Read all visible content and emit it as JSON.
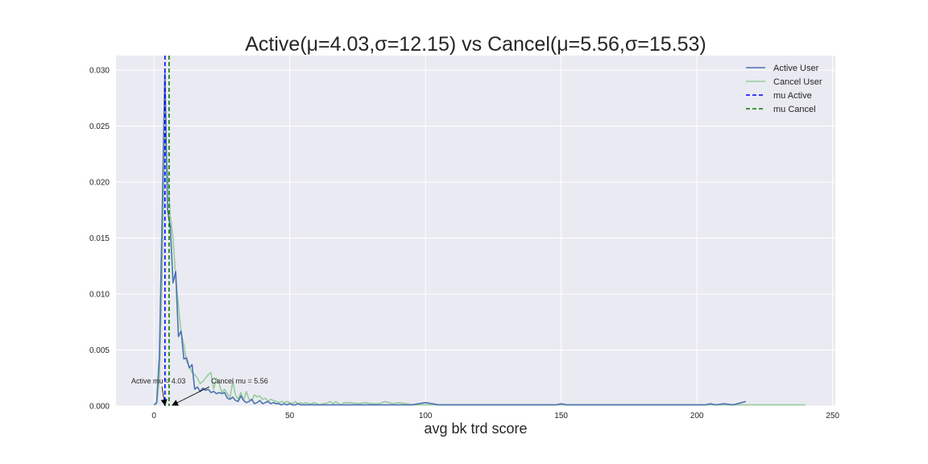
{
  "chart_data": {
    "type": "line",
    "title": "Active(μ=4.03,σ=12.15) vs Cancel(μ=5.56,σ=15.53)",
    "xlabel": "avg bk trd score",
    "ylabel": "",
    "xlim": [
      -14,
      251
    ],
    "ylim": [
      0,
      0.0313
    ],
    "xticks": [
      0,
      50,
      100,
      150,
      200,
      250
    ],
    "xtick_labels": [
      "0",
      "50",
      "100",
      "150",
      "200",
      "250"
    ],
    "yticks": [
      0,
      0.005,
      0.01,
      0.015,
      0.02,
      0.025,
      0.03
    ],
    "ytick_labels": [
      "0.000",
      "0.005",
      "0.010",
      "0.015",
      "0.020",
      "0.025",
      "0.030"
    ],
    "grid": true,
    "legend_position": "top-right",
    "series": [
      {
        "name": "Active User",
        "color": "#4c72b0",
        "x": [
          0,
          1,
          2,
          3,
          4,
          5,
          6,
          7,
          8,
          9,
          10,
          11,
          12,
          13,
          14,
          15,
          16,
          17,
          18,
          19,
          20,
          21,
          22,
          23,
          24,
          25,
          26,
          27,
          28,
          29,
          30,
          31,
          32,
          33,
          34,
          35,
          36,
          37,
          38,
          39,
          40,
          41,
          42,
          43,
          44,
          45,
          46,
          47,
          48,
          49,
          50,
          51,
          52,
          53,
          54,
          55,
          56,
          57,
          58,
          59,
          60,
          61,
          62,
          63,
          64,
          65,
          66,
          67,
          68,
          69,
          70,
          71,
          72,
          73,
          74,
          75,
          76,
          77,
          78,
          79,
          80,
          81,
          82,
          83,
          84,
          85,
          86,
          87,
          88,
          89,
          90,
          95,
          100,
          105,
          110,
          115,
          120,
          125,
          130,
          135,
          140,
          145,
          148,
          150,
          152,
          155,
          160,
          165,
          170,
          175,
          180,
          185,
          190,
          195,
          200,
          203,
          205,
          207,
          210,
          213,
          215,
          218
        ],
        "y": [
          0.0001,
          0.0003,
          0.0045,
          0.017,
          0.03,
          0.0175,
          0.016,
          0.011,
          0.012,
          0.0062,
          0.0067,
          0.0042,
          0.0043,
          0.0034,
          0.0037,
          0.0015,
          0.0017,
          0.0013,
          0.0016,
          0.0014,
          0.0015,
          0.0012,
          0.0013,
          0.0011,
          0.0012,
          0.0011,
          0.0012,
          0.0007,
          0.0006,
          0.0008,
          0.0005,
          0.0004,
          0.0009,
          0.0005,
          0.0003,
          0.0004,
          0.0006,
          0.0002,
          0.0003,
          0.0005,
          0.0002,
          0.0003,
          0.0004,
          0.0002,
          0.0003,
          0.0002,
          0.0002,
          0.0001,
          0.0002,
          0.0001,
          0.0002,
          0.0001,
          0.0001,
          0.0002,
          0.0001,
          0.0001,
          0.0001,
          0.0001,
          0.0001,
          0.0001,
          0.0001,
          0.0001,
          0.0001,
          0.0001,
          0.0001,
          0.0001,
          0.0001,
          0.0001,
          0.0001,
          0.0001,
          0.0001,
          0.0001,
          0.0001,
          0.0001,
          0.0001,
          0.0001,
          0.0001,
          0.0001,
          0.0001,
          0.0001,
          0.0001,
          0.0001,
          0.0001,
          0.0001,
          0.0001,
          0.0001,
          0.0001,
          0.0001,
          0.0001,
          0.0001,
          0.0001,
          0.0001,
          0.0003,
          0.0001,
          0.0001,
          0.0001,
          0.0001,
          0.0001,
          0.0001,
          0.0001,
          0.0001,
          0.0001,
          0.0001,
          0.0002,
          0.0001,
          0.0001,
          0.0001,
          0.0001,
          0.0001,
          0.0001,
          0.0001,
          0.0001,
          0.0001,
          0.0001,
          0.0001,
          0.0001,
          0.0002,
          0.0001,
          0.0002,
          0.0001,
          0.0002,
          0.0004
        ]
      },
      {
        "name": "Cancel User",
        "color": "#97cd9e",
        "x": [
          0,
          1,
          2,
          3,
          4,
          5,
          6,
          7,
          8,
          9,
          10,
          11,
          12,
          13,
          14,
          15,
          16,
          17,
          18,
          19,
          20,
          21,
          22,
          23,
          24,
          25,
          26,
          27,
          28,
          29,
          30,
          31,
          32,
          33,
          34,
          35,
          36,
          37,
          38,
          39,
          40,
          41,
          42,
          43,
          44,
          45,
          46,
          47,
          48,
          49,
          50,
          51,
          52,
          53,
          54,
          55,
          56,
          57,
          58,
          59,
          60,
          61,
          62,
          63,
          64,
          65,
          66,
          67,
          68,
          69,
          70,
          72,
          75,
          78,
          80,
          83,
          85,
          88,
          90,
          93,
          95,
          100,
          105,
          110,
          115,
          120,
          130,
          140,
          150,
          160,
          170,
          180,
          190,
          200,
          210,
          220,
          225,
          230,
          235,
          240
        ],
        "y": [
          0.0001,
          0.0002,
          0.0025,
          0.012,
          0.024,
          0.021,
          0.017,
          0.015,
          0.0115,
          0.009,
          0.0065,
          0.0055,
          0.004,
          0.0035,
          0.003,
          0.0028,
          0.0025,
          0.002,
          0.0022,
          0.0025,
          0.0028,
          0.003,
          0.0015,
          0.0025,
          0.002,
          0.0012,
          0.0015,
          0.0011,
          0.0007,
          0.0022,
          0.001,
          0.0006,
          0.0012,
          0.0005,
          0.0013,
          0.0006,
          0.0005,
          0.001,
          0.0008,
          0.0009,
          0.0006,
          0.0007,
          0.0004,
          0.0006,
          0.0005,
          0.0004,
          0.0003,
          0.0004,
          0.0003,
          0.0004,
          0.0003,
          0.0002,
          0.0004,
          0.0002,
          0.0003,
          0.0002,
          0.0003,
          0.0002,
          0.0002,
          0.0003,
          0.0002,
          0.0001,
          0.0002,
          0.0002,
          0.0003,
          0.0004,
          0.0002,
          0.0004,
          0.0002,
          0.0001,
          0.0003,
          0.0003,
          0.0002,
          0.0003,
          0.0002,
          0.0002,
          0.0004,
          0.0002,
          0.0003,
          0.0002,
          0.0001,
          0.0001,
          0.0001,
          0.0001,
          0.0001,
          0.0001,
          0.0001,
          0.0001,
          0.0001,
          0.0001,
          0.0001,
          0.0001,
          0.0001,
          0.0001,
          0.0001,
          0.0001,
          0.0001,
          0.0001,
          0.0001,
          0.0001
        ]
      }
    ],
    "vlines": [
      {
        "name": "mu Active",
        "x": 4.03,
        "color": "#0000ff"
      },
      {
        "name": "mu Cancel",
        "x": 5.56,
        "color": "#008000"
      }
    ],
    "annotations": [
      {
        "text": "Active mu = 4.03",
        "x": 4.03,
        "y": 0
      },
      {
        "text": "Cancel mu = 5.56",
        "x": 5.56,
        "y": 0
      }
    ],
    "colors": {
      "plot_background": "#eaeaf2",
      "grid": "#ffffff"
    }
  }
}
